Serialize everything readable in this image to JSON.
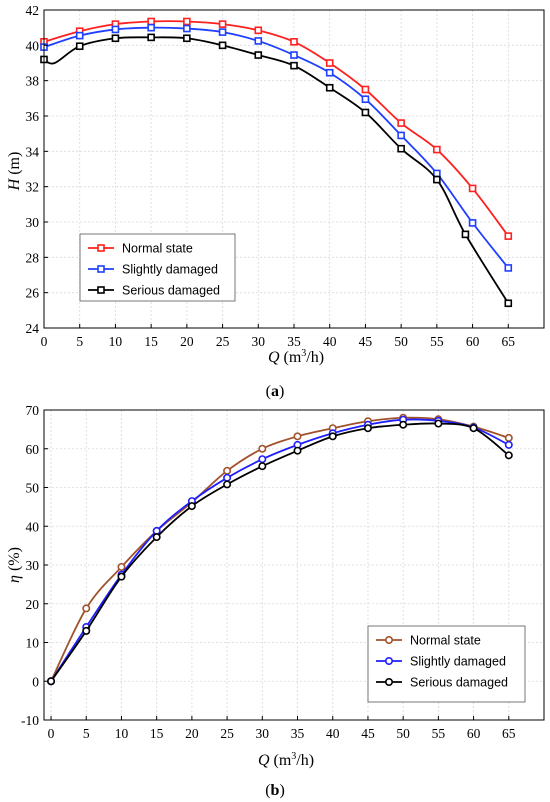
{
  "chart_data": [
    {
      "type": "line",
      "caption_letter": "a",
      "xlabel_sym": "Q",
      "xlabel_unit_a": "(m",
      "xlabel_unit_sup": "3",
      "xlabel_unit_b": "/h)",
      "ylabel_sym": "H",
      "ylabel_unit": "(m)",
      "xlim": [
        0,
        70
      ],
      "ylim": [
        24,
        42
      ],
      "xticks": [
        0,
        5,
        10,
        15,
        20,
        25,
        30,
        35,
        40,
        45,
        50,
        55,
        60,
        65
      ],
      "yticks": [
        24,
        26,
        28,
        30,
        32,
        34,
        36,
        38,
        40,
        42
      ],
      "marker": "square",
      "legend_position": "bottom-left",
      "series": [
        {
          "name": "Normal state",
          "color": "#ff2020",
          "x": [
            0,
            5,
            10,
            15,
            20,
            25,
            30,
            35,
            40,
            45,
            50,
            55,
            60,
            65
          ],
          "y": [
            40.2,
            40.8,
            41.2,
            41.35,
            41.35,
            41.2,
            40.85,
            40.2,
            39.0,
            37.5,
            35.6,
            34.1,
            31.9,
            29.2
          ]
        },
        {
          "name": "Slightly damaged",
          "color": "#1f3fff",
          "x": [
            0,
            5,
            10,
            15,
            20,
            25,
            30,
            35,
            40,
            45,
            50,
            55,
            60,
            65
          ],
          "y": [
            39.9,
            40.55,
            40.9,
            41.0,
            40.95,
            40.75,
            40.25,
            39.45,
            38.45,
            36.95,
            34.9,
            32.75,
            29.95,
            27.4
          ]
        },
        {
          "name": "Serious damaged",
          "color": "#000000",
          "x": [
            0,
            1.5,
            5,
            10,
            15,
            20,
            25,
            30,
            35,
            40,
            45,
            50,
            55,
            59,
            65
          ],
          "y": [
            39.2,
            39.0,
            39.95,
            40.4,
            40.45,
            40.4,
            40.0,
            39.45,
            38.85,
            37.6,
            36.2,
            34.15,
            32.4,
            29.3,
            25.4
          ],
          "marker_x": [
            0,
            5,
            10,
            15,
            20,
            25,
            30,
            35,
            40,
            45,
            50,
            55,
            59,
            65
          ],
          "marker_y": [
            39.2,
            39.95,
            40.4,
            40.45,
            40.4,
            40.0,
            39.45,
            38.85,
            37.6,
            36.2,
            34.15,
            32.4,
            29.3,
            25.4
          ]
        }
      ]
    },
    {
      "type": "line",
      "caption_letter": "b",
      "xlabel_sym": "Q",
      "xlabel_unit_a": "(m",
      "xlabel_unit_sup": "3",
      "xlabel_unit_b": "/h)",
      "ylabel_sym": "η",
      "ylabel_unit": "(%)",
      "xlim": [
        -1,
        70
      ],
      "ylim": [
        -10,
        70
      ],
      "xticks": [
        0,
        5,
        10,
        15,
        20,
        25,
        30,
        35,
        40,
        45,
        50,
        55,
        60,
        65
      ],
      "yticks": [
        -10,
        0,
        10,
        20,
        30,
        40,
        50,
        60,
        70
      ],
      "marker": "circle",
      "legend_position": "bottom-right",
      "series": [
        {
          "name": "Normal state",
          "color": "#a0522d",
          "x": [
            0,
            5,
            10,
            15,
            20,
            25,
            30,
            35,
            40,
            45,
            50,
            55,
            60,
            65
          ],
          "y": [
            0,
            18.8,
            29.5,
            38.8,
            46.2,
            54.3,
            60.0,
            63.2,
            65.3,
            67.1,
            68.0,
            67.6,
            65.7,
            62.8
          ]
        },
        {
          "name": "Slightly damaged",
          "color": "#1f1fff",
          "x": [
            0,
            5,
            10,
            15,
            20,
            25,
            30,
            35,
            40,
            45,
            50,
            55,
            60,
            65
          ],
          "y": [
            0,
            14.0,
            27.5,
            38.8,
            46.5,
            52.5,
            57.3,
            61.0,
            64.0,
            66.2,
            67.5,
            67.2,
            65.5,
            61.0
          ]
        },
        {
          "name": "Serious damaged",
          "color": "#000000",
          "x": [
            0,
            5,
            10,
            15,
            20,
            25,
            30,
            35,
            40,
            45,
            50,
            55,
            60,
            65
          ],
          "y": [
            0,
            13.0,
            27.0,
            37.2,
            45.2,
            50.8,
            55.5,
            59.5,
            63.2,
            65.3,
            66.2,
            66.5,
            65.3,
            58.3
          ]
        }
      ]
    }
  ]
}
